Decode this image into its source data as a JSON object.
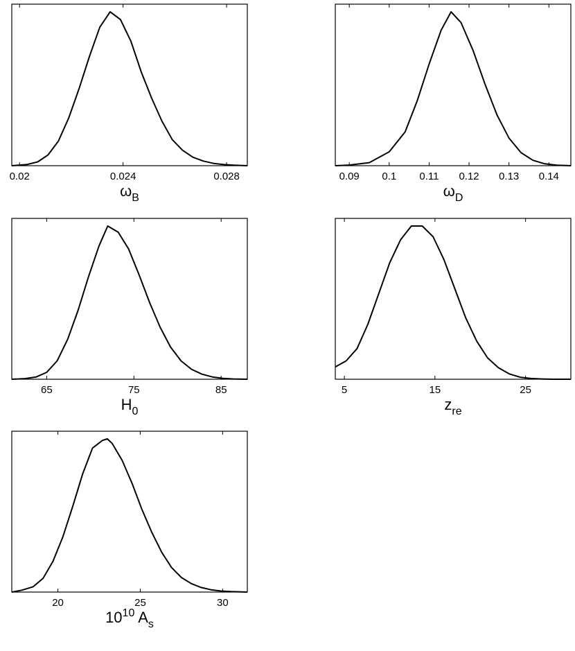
{
  "chart_data": [
    {
      "type": "line",
      "title": "",
      "xlabel": "ω",
      "xlabel_sub": "B",
      "xlabel_sup": "",
      "xlabel_suffix": "",
      "ylabel": "",
      "xlim": [
        0.0197,
        0.0288
      ],
      "ylim": [
        0,
        1.05
      ],
      "xticks": [
        0.02,
        0.024,
        0.028
      ],
      "xtick_labels": [
        "0.02",
        "0.024",
        "0.028"
      ],
      "series": [
        {
          "x": [
            0.0197,
            0.0203,
            0.0207,
            0.0211,
            0.0215,
            0.0219,
            0.0223,
            0.0227,
            0.0231,
            0.0235,
            0.0239,
            0.0243,
            0.0247,
            0.0251,
            0.0255,
            0.0259,
            0.0263,
            0.0267,
            0.0271,
            0.0275,
            0.0279,
            0.0283,
            0.0288
          ],
          "y": [
            0.0,
            0.008,
            0.025,
            0.07,
            0.16,
            0.31,
            0.5,
            0.71,
            0.9,
            1.0,
            0.95,
            0.81,
            0.61,
            0.44,
            0.29,
            0.17,
            0.1,
            0.055,
            0.03,
            0.015,
            0.007,
            0.003,
            0.0
          ]
        }
      ]
    },
    {
      "type": "line",
      "title": "",
      "xlabel": "ω",
      "xlabel_sub": "D",
      "xlabel_sup": "",
      "xlabel_suffix": "",
      "ylabel": "",
      "xlim": [
        0.0865,
        0.1455
      ],
      "ylim": [
        0,
        1.05
      ],
      "xticks": [
        0.09,
        0.1,
        0.11,
        0.12,
        0.13,
        0.14
      ],
      "xtick_labels": [
        "0.09",
        "0.1",
        "0.11",
        "0.12",
        "0.13",
        "0.14"
      ],
      "series": [
        {
          "x": [
            0.0865,
            0.09,
            0.095,
            0.1,
            0.104,
            0.107,
            0.11,
            0.113,
            0.1155,
            0.118,
            0.121,
            0.124,
            0.127,
            0.13,
            0.133,
            0.136,
            0.139,
            0.142,
            0.1455
          ],
          "y": [
            0.0,
            0.004,
            0.02,
            0.09,
            0.22,
            0.42,
            0.66,
            0.88,
            1.0,
            0.93,
            0.75,
            0.53,
            0.33,
            0.18,
            0.085,
            0.035,
            0.012,
            0.003,
            0.0
          ]
        }
      ]
    },
    {
      "type": "line",
      "title": "",
      "xlabel": "H",
      "xlabel_sub": "0",
      "xlabel_sup": "",
      "xlabel_suffix": "",
      "ylabel": "",
      "xlim": [
        61,
        88
      ],
      "ylim": [
        0,
        1.05
      ],
      "xticks": [
        65,
        75,
        85
      ],
      "xtick_labels": [
        "65",
        "75",
        "85"
      ],
      "series": [
        {
          "x": [
            61,
            62.5,
            63.8,
            65,
            66.2,
            67.4,
            68.6,
            69.8,
            71,
            72,
            73.2,
            74.4,
            75.6,
            76.8,
            78,
            79.2,
            80.4,
            81.6,
            82.8,
            84,
            85.2,
            86.4,
            88
          ],
          "y": [
            0.0,
            0.004,
            0.015,
            0.045,
            0.12,
            0.26,
            0.45,
            0.67,
            0.87,
            1.0,
            0.96,
            0.85,
            0.68,
            0.5,
            0.34,
            0.21,
            0.12,
            0.065,
            0.033,
            0.015,
            0.006,
            0.002,
            0.0
          ]
        }
      ]
    },
    {
      "type": "line",
      "title": "",
      "xlabel": "z",
      "xlabel_sub": "re",
      "xlabel_sup": "",
      "xlabel_suffix": "",
      "ylabel": "",
      "xlim": [
        4,
        30
      ],
      "ylim": [
        0,
        1.05
      ],
      "xticks": [
        5,
        15,
        25
      ],
      "xtick_labels": [
        "5",
        "15",
        "25"
      ],
      "series": [
        {
          "x": [
            4,
            5.2,
            6.4,
            7.6,
            8.8,
            10,
            11.2,
            12.4,
            13.6,
            14.8,
            16,
            17.2,
            18.4,
            19.6,
            20.8,
            22,
            23.2,
            24.4,
            25.6,
            26.8,
            28,
            30
          ],
          "y": [
            0.08,
            0.12,
            0.2,
            0.36,
            0.56,
            0.76,
            0.91,
            1.0,
            1.0,
            0.93,
            0.78,
            0.59,
            0.4,
            0.25,
            0.14,
            0.075,
            0.035,
            0.013,
            0.005,
            0.002,
            0.0,
            0.0
          ]
        }
      ]
    },
    {
      "type": "line",
      "title": "",
      "xlabel": "10",
      "xlabel_sub": "s",
      "xlabel_sup": "10",
      "xlabel_suffix": " A",
      "ylabel": "",
      "xlim": [
        17.2,
        31.5
      ],
      "ylim": [
        0,
        1.05
      ],
      "xticks": [
        20,
        25,
        30
      ],
      "xtick_labels": [
        "20",
        "25",
        "30"
      ],
      "series": [
        {
          "x": [
            17.2,
            17.8,
            18.5,
            19.1,
            19.7,
            20.3,
            20.9,
            21.5,
            22.1,
            22.7,
            23.0,
            23.3,
            23.9,
            24.5,
            25.1,
            25.7,
            26.3,
            26.9,
            27.5,
            28.1,
            28.7,
            29.3,
            29.9,
            30.5,
            31.5
          ],
          "y": [
            0.0,
            0.012,
            0.035,
            0.09,
            0.2,
            0.36,
            0.56,
            0.77,
            0.94,
            0.99,
            1.0,
            0.97,
            0.86,
            0.71,
            0.54,
            0.39,
            0.26,
            0.16,
            0.095,
            0.055,
            0.03,
            0.015,
            0.007,
            0.003,
            0.0
          ]
        }
      ]
    }
  ]
}
